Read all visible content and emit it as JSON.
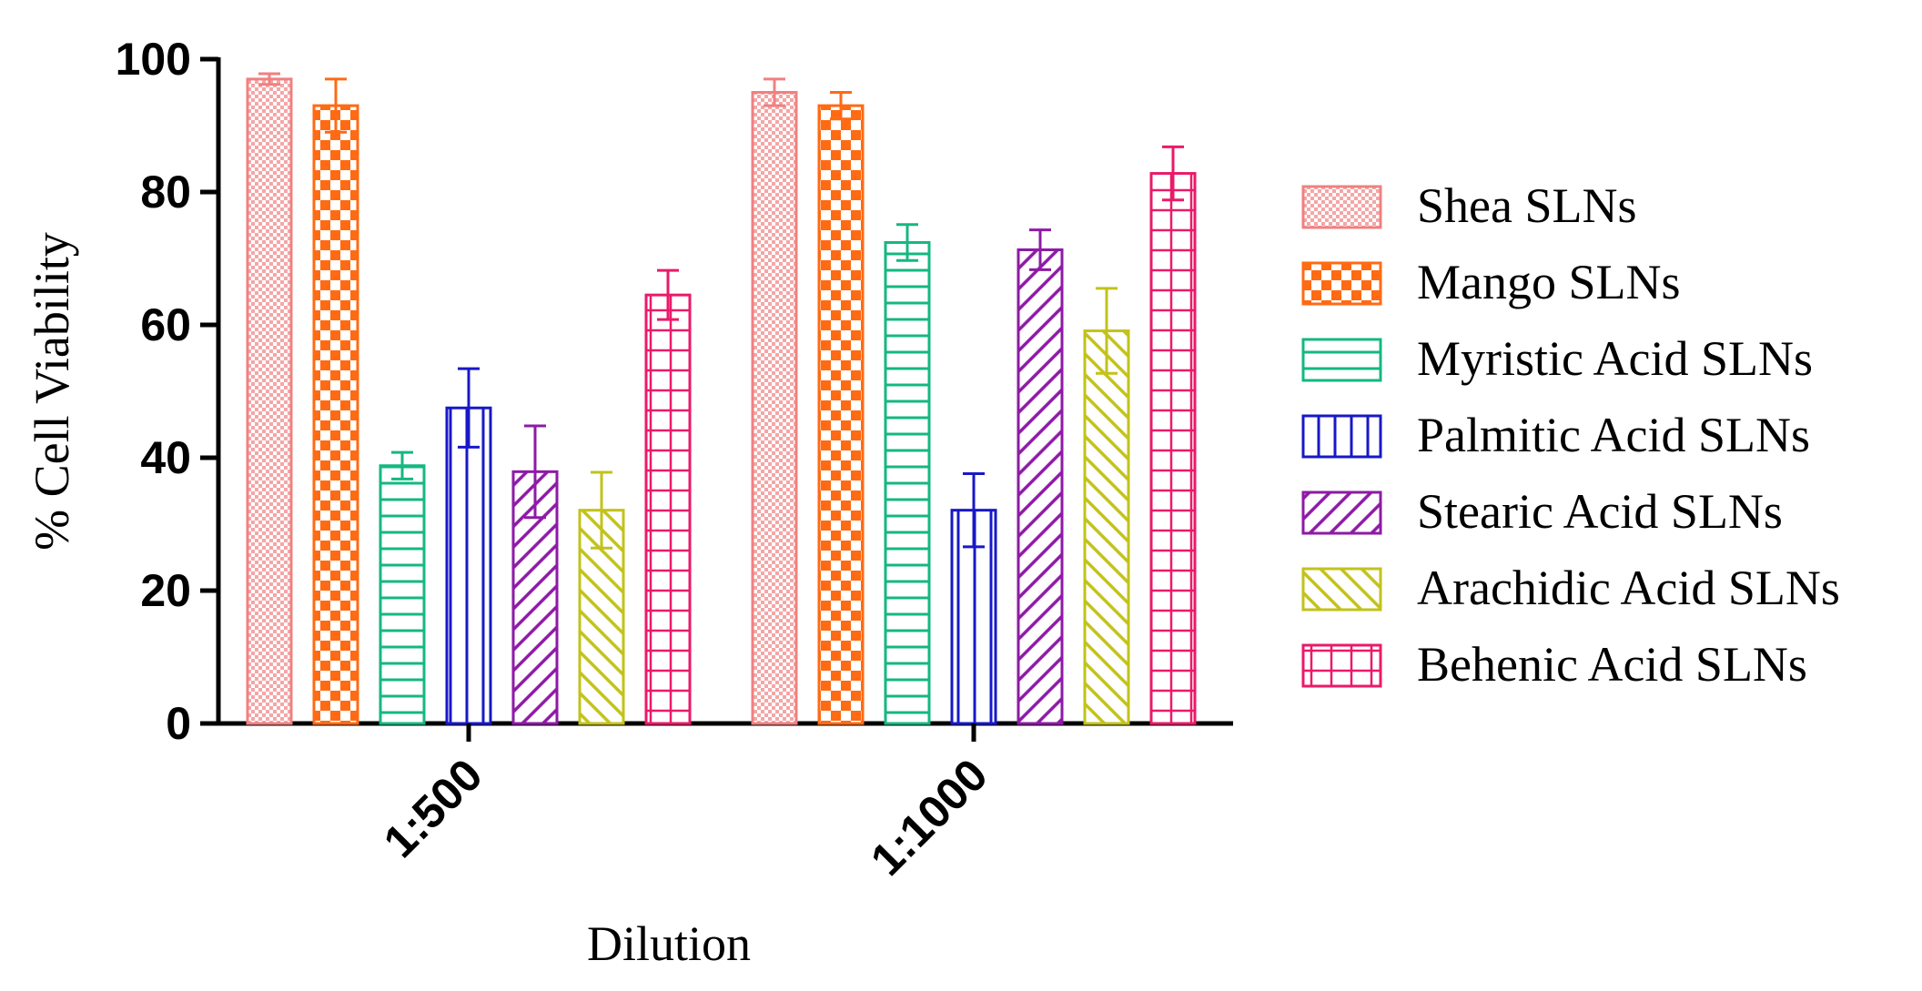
{
  "chart_data": {
    "type": "bar",
    "xlabel": "Dilution",
    "ylabel": "% Cell Viability",
    "ylim": [
      0,
      100
    ],
    "yticks": [
      0,
      20,
      40,
      60,
      80,
      100
    ],
    "categories": [
      "1:500",
      "1:1000"
    ],
    "legend_position": "right",
    "series": [
      {
        "name": "Shea SLNs",
        "pattern": "fine-check",
        "color": "#f08080",
        "values": [
          97,
          95
        ],
        "errors": [
          0.8,
          2
        ]
      },
      {
        "name": "Mango SLNs",
        "pattern": "checker",
        "color": "#ff6a13",
        "values": [
          93,
          93
        ],
        "errors": [
          4,
          2
        ]
      },
      {
        "name": "Myristic Acid SLNs",
        "pattern": "horizontal",
        "color": "#14b880",
        "values": [
          38.8,
          72.4
        ],
        "errors": [
          2,
          2.7
        ]
      },
      {
        "name": "Palmitic Acid SLNs",
        "pattern": "vertical",
        "color": "#1818c8",
        "values": [
          47.5,
          32.1
        ],
        "errors": [
          5.9,
          5.5
        ]
      },
      {
        "name": "Stearic Acid SLNs",
        "pattern": "diag-up",
        "color": "#8e1aa6",
        "values": [
          37.9,
          71.3
        ],
        "errors": [
          6.9,
          3
        ]
      },
      {
        "name": "Arachidic Acid SLNs",
        "pattern": "diag-down",
        "color": "#c2c21a",
        "values": [
          32.1,
          59.1
        ],
        "errors": [
          5.7,
          6.4
        ]
      },
      {
        "name": "Behenic Acid SLNs",
        "pattern": "grid",
        "color": "#ea1a6a",
        "values": [
          64.5,
          82.8
        ],
        "errors": [
          3.7,
          4
        ]
      }
    ]
  }
}
